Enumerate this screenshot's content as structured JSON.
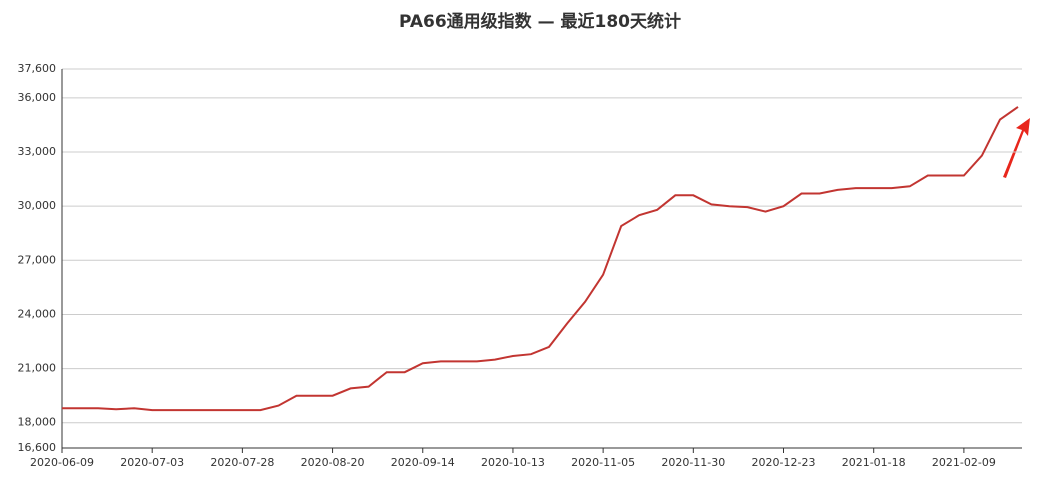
{
  "chart_data": {
    "type": "line",
    "title": "PA66通用级指数   —   最近180天统计",
    "categories": [
      "2020-06-09",
      null,
      null,
      null,
      null,
      "2020-07-03",
      null,
      null,
      null,
      null,
      "2020-07-28",
      null,
      null,
      null,
      null,
      "2020-08-20",
      null,
      null,
      null,
      null,
      "2020-09-14",
      null,
      null,
      null,
      null,
      "2020-10-13",
      null,
      null,
      null,
      null,
      "2020-11-05",
      null,
      null,
      null,
      null,
      "2020-11-30",
      null,
      null,
      null,
      null,
      "2020-12-23",
      null,
      null,
      null,
      null,
      "2021-01-18",
      null,
      null,
      null,
      null,
      "2021-02-09",
      null,
      null,
      null
    ],
    "series": [
      {
        "color": "#c23531",
        "values": [
          18800,
          18800,
          18800,
          18750,
          18800,
          18700,
          18700,
          18700,
          18700,
          18700,
          18700,
          18700,
          18950,
          19500,
          19500,
          19500,
          19900,
          20000,
          20800,
          20800,
          21300,
          21400,
          21400,
          21400,
          21500,
          21700,
          21800,
          22200,
          23500,
          24700,
          26200,
          28900,
          29500,
          29800,
          30600,
          30600,
          30100,
          30000,
          29950,
          29700,
          30000,
          30700,
          30700,
          30900,
          31000,
          31000,
          31000,
          31100,
          31700,
          31700,
          31700,
          32800,
          34800,
          35500
        ]
      }
    ],
    "ylim": [
      16600,
      37600
    ],
    "yticks": [
      {
        "value": 16600,
        "label": "16,600"
      },
      {
        "value": 18000,
        "label": "18,000"
      },
      {
        "value": 21000,
        "label": "21,000"
      },
      {
        "value": 24000,
        "label": "24,000"
      },
      {
        "value": 27000,
        "label": "27,000"
      },
      {
        "value": 30000,
        "label": "30,000"
      },
      {
        "value": 33000,
        "label": "33,000"
      },
      {
        "value": 36000,
        "label": "36,000"
      },
      {
        "value": 37600,
        "label": "37,600"
      }
    ],
    "grid": true
  }
}
